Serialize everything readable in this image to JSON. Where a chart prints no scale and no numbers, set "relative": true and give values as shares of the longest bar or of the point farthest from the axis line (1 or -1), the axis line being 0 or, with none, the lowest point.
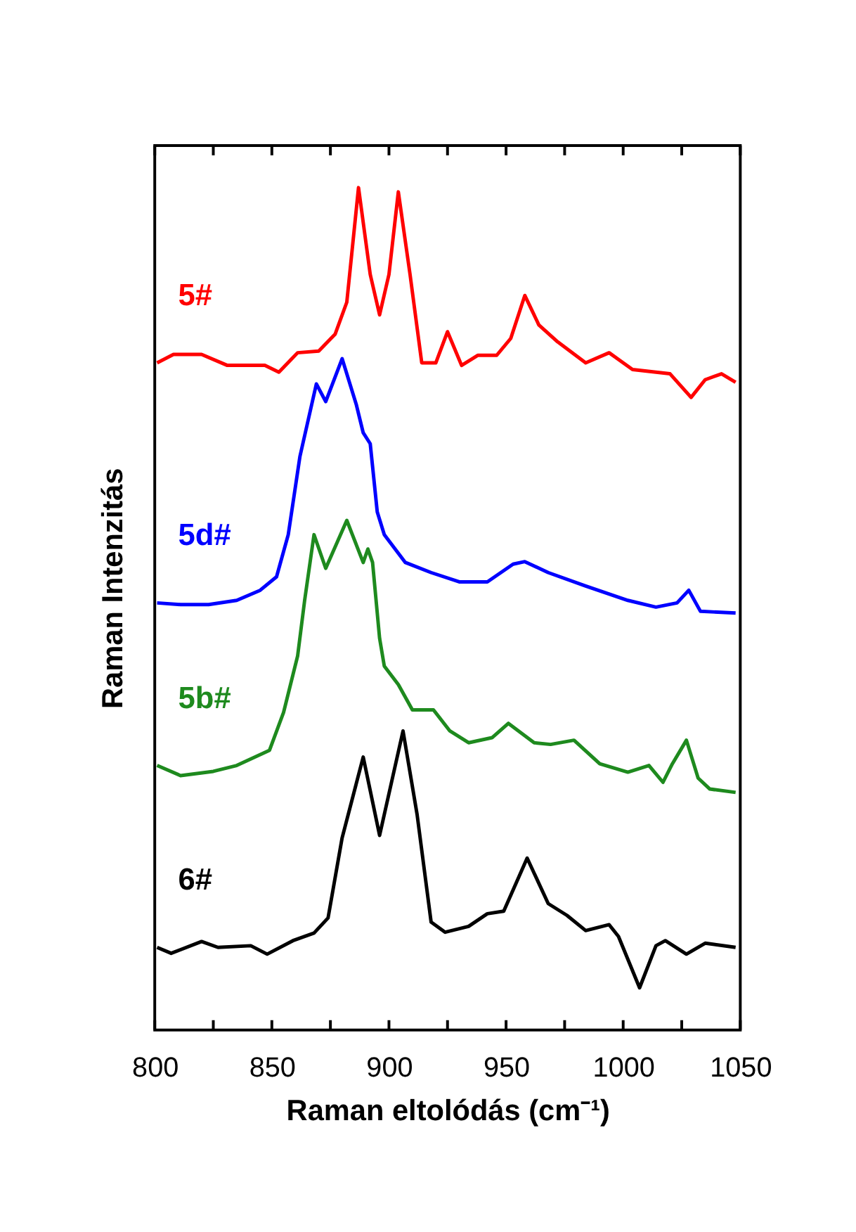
{
  "chart_data": {
    "type": "line",
    "relative": true,
    "xlabel": "Raman eltolódás (cm⁻¹)",
    "ylabel": "Raman Intenzitás",
    "xlim": [
      800,
      1050
    ],
    "xticks": [
      800,
      {
        "value": 825,
        "label": null
      },
      850,
      {
        "value": 875,
        "label": null
      },
      900,
      {
        "value": 925,
        "label": null
      },
      950,
      {
        "value": 975,
        "label": null
      },
      1000,
      {
        "value": 1025,
        "label": null
      },
      1050
    ],
    "grid": false,
    "marker": "none",
    "line_style": "solid",
    "series": [
      {
        "name": "5#",
        "color": "#ff0000",
        "x": [
          801,
          808,
          820,
          831,
          847,
          853,
          861,
          870,
          877,
          882,
          887,
          892,
          896,
          900,
          904,
          909,
          914,
          920,
          925,
          931,
          938,
          946,
          952,
          958,
          964,
          972,
          984,
          994,
          1004,
          1020,
          1029,
          1035,
          1042,
          1048
        ],
        "values": [
          0.792,
          0.802,
          0.802,
          0.789,
          0.789,
          0.781,
          0.804,
          0.806,
          0.826,
          0.864,
          1.0,
          0.897,
          0.849,
          0.897,
          0.995,
          0.897,
          0.792,
          0.792,
          0.829,
          0.789,
          0.801,
          0.801,
          0.821,
          0.872,
          0.837,
          0.817,
          0.792,
          0.804,
          0.784,
          0.779,
          0.751,
          0.772,
          0.779,
          0.769
        ]
      },
      {
        "name": "5d#",
        "color": "#0000ff",
        "x": [
          801,
          811,
          823,
          835,
          845,
          852,
          857,
          862,
          869,
          873,
          880,
          886,
          889,
          892,
          895,
          898,
          907,
          918,
          930,
          942,
          953,
          958,
          968,
          984,
          1002,
          1014,
          1023,
          1028,
          1033,
          1048
        ],
        "values": [
          0.507,
          0.505,
          0.505,
          0.51,
          0.522,
          0.538,
          0.588,
          0.681,
          0.767,
          0.746,
          0.797,
          0.743,
          0.709,
          0.696,
          0.615,
          0.588,
          0.555,
          0.543,
          0.532,
          0.532,
          0.553,
          0.556,
          0.543,
          0.527,
          0.51,
          0.502,
          0.507,
          0.522,
          0.497,
          0.495
        ]
      },
      {
        "name": "5b#",
        "color": "#1e8a1e",
        "x": [
          801,
          811,
          825,
          835,
          849,
          855,
          861,
          864,
          868,
          873,
          882,
          889,
          891,
          893,
          896,
          898,
          904,
          910,
          919,
          926,
          934,
          944,
          951,
          962,
          969,
          979,
          990,
          1002,
          1011,
          1017,
          1021,
          1027,
          1032,
          1037,
          1048
        ],
        "values": [
          0.314,
          0.302,
          0.307,
          0.314,
          0.332,
          0.377,
          0.444,
          0.51,
          0.588,
          0.548,
          0.605,
          0.555,
          0.571,
          0.555,
          0.465,
          0.432,
          0.41,
          0.38,
          0.38,
          0.355,
          0.341,
          0.347,
          0.364,
          0.341,
          0.339,
          0.344,
          0.316,
          0.306,
          0.314,
          0.294,
          0.316,
          0.344,
          0.299,
          0.286,
          0.282
        ]
      },
      {
        "name": "6#",
        "color": "#000000",
        "x": [
          801,
          807,
          820,
          827,
          841,
          848,
          859,
          868,
          874,
          880,
          889,
          896,
          906,
          912,
          918,
          924,
          934,
          942,
          949,
          959,
          968,
          976,
          984,
          994,
          998,
          1007,
          1014,
          1018,
          1027,
          1035,
          1048
        ],
        "values": [
          0.098,
          0.091,
          0.105,
          0.098,
          0.1,
          0.09,
          0.106,
          0.115,
          0.133,
          0.228,
          0.324,
          0.231,
          0.355,
          0.256,
          0.128,
          0.116,
          0.123,
          0.138,
          0.141,
          0.204,
          0.15,
          0.136,
          0.118,
          0.125,
          0.111,
          0.05,
          0.1,
          0.106,
          0.09,
          0.103,
          0.098
        ]
      }
    ]
  }
}
